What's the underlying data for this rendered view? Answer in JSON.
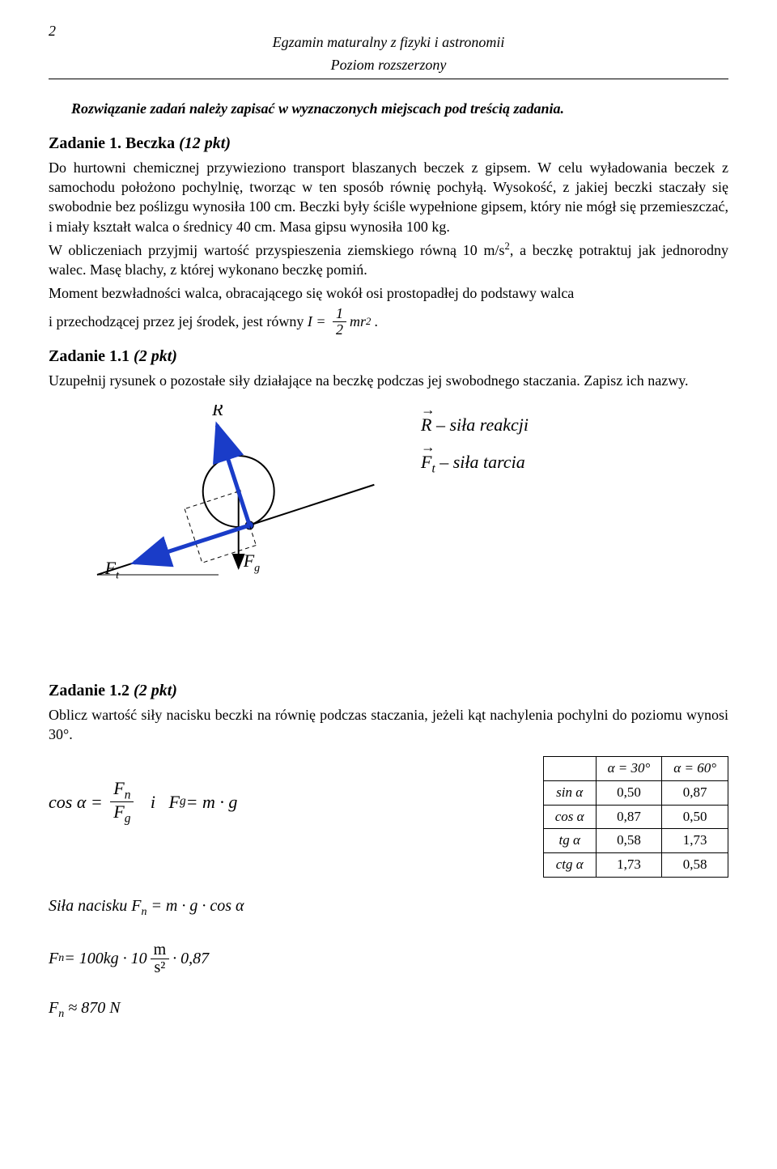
{
  "page_number": "2",
  "header_line1": "Egzamin maturalny z fizyki i astronomii",
  "header_line2": "Poziom rozszerzony",
  "instruction": "Rozwiązanie zadań należy zapisać w wyznaczonych miejscach pod treścią zadania.",
  "task1_title": "Zadanie 1. Beczka ",
  "task1_pts": "(12 pkt)",
  "task1_body": "Do hurtowni chemicznej przywieziono transport blaszanych beczek z gipsem. W celu wyładowania beczek z samochodu położono pochylnię, tworząc w ten sposób równię pochyłą. Wysokość, z jakiej beczki staczały się swobodnie bez poślizgu wynosiła 100 cm. Beczki były ściśle wypełnione gipsem, który nie mógł się przemieszczać, i miały kształt walca o średnicy 40 cm. Masa gipsu wynosiła 100 kg.",
  "task1_body2a": "W obliczeniach przyjmij wartość przyspieszenia ziemskiego równą 10 m/s",
  "task1_body2b": ", a beczkę potraktuj jak jednorodny walec. Masę blachy, z której wykonano beczkę pomiń.",
  "task1_body3": "Moment bezwładności walca, obracającego się wokół osi prostopadłej do podstawy walca",
  "task1_body4_pre": "i przechodzącej przez jej środek, jest równy ",
  "task11_title": "Zadanie 1.1 ",
  "task11_pts": "(2 pkt)",
  "task11_body": "Uzupełnij rysunek o pozostałe siły działające na beczkę podczas jej swobodnego staczania. Zapisz ich nazwy.",
  "legend_R": " – siła reakcji",
  "legend_Ft": " – siła tarcia",
  "task12_title": "Zadanie 1.2 ",
  "task12_pts": "(2 pkt)",
  "task12_body": "Oblicz wartość siły nacisku beczki na równię podczas staczania, jeżeli kąt nachylenia pochylni do poziomu wynosi 30°.",
  "cos_eq_lhs": "cos α =",
  "and_word": "i",
  "Fg_eq": "F",
  "Fg_eq_rhs": " = m · g",
  "trig": {
    "head_a30": "α = 30°",
    "head_a60": "α = 60°",
    "rows": [
      {
        "label": "sin α",
        "v30": "0,50",
        "v60": "0,87"
      },
      {
        "label": "cos α",
        "v30": "0,87",
        "v60": "0,50"
      },
      {
        "label": "tg α",
        "v30": "0,58",
        "v60": "1,73"
      },
      {
        "label": "ctg α",
        "v30": "1,73",
        "v60": "0,58"
      }
    ]
  },
  "sol_label": "Siła nacisku ",
  "sol_eq": " = m · g · cos α",
  "calc_prefix": "F",
  "calc_mid": " = 100kg · 10 ",
  "calc_unit_num": "m",
  "calc_unit_den": "s²",
  "calc_suffix": " · 0,87",
  "result_prefix": "F",
  "result_val": " ≈ 870 N",
  "diagram": {
    "colors": {
      "force": "#1a3cc8",
      "line": "#000"
    },
    "incline_angle_deg": 18,
    "circle_r": 44,
    "arrow_len": 130
  }
}
